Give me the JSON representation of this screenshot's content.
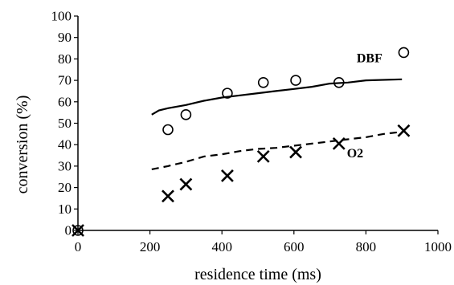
{
  "chart_data": {
    "type": "scatter",
    "xlabel": "residence time (ms)",
    "ylabel": "conversion (%)",
    "xlim": [
      0,
      1000
    ],
    "ylim": [
      0,
      100
    ],
    "xticks": [
      "0",
      "200",
      "400",
      "600",
      "800",
      "1000"
    ],
    "yticks": [
      "0",
      "10",
      "20",
      "30",
      "40",
      "50",
      "60",
      "70",
      "80",
      "90",
      "100"
    ],
    "grid": false,
    "legend": "none",
    "series": [
      {
        "name": "DBF",
        "kind": "points",
        "marker": "circle",
        "points": [
          [
            0,
            0
          ],
          [
            250,
            47
          ],
          [
            300,
            54
          ],
          [
            415,
            64
          ],
          [
            515,
            69
          ],
          [
            605,
            70
          ],
          [
            725,
            69
          ],
          [
            905,
            83
          ]
        ]
      },
      {
        "name": "O2",
        "kind": "points",
        "marker": "x",
        "points": [
          [
            0,
            0
          ],
          [
            250,
            16
          ],
          [
            300,
            21.5
          ],
          [
            415,
            25.5
          ],
          [
            515,
            34.5
          ],
          [
            605,
            36.5
          ],
          [
            725,
            40.5
          ],
          [
            905,
            46.5
          ]
        ]
      },
      {
        "name": "DBF",
        "kind": "line",
        "style": "solid",
        "points": [
          [
            205,
            54
          ],
          [
            225,
            56
          ],
          [
            250,
            57
          ],
          [
            300,
            58.5
          ],
          [
            350,
            60.5
          ],
          [
            400,
            62
          ],
          [
            450,
            63
          ],
          [
            500,
            64
          ],
          [
            550,
            65
          ],
          [
            600,
            66
          ],
          [
            650,
            67
          ],
          [
            700,
            68.5
          ],
          [
            750,
            69
          ],
          [
            800,
            70
          ],
          [
            900,
            70.5
          ]
        ]
      },
      {
        "name": "O2",
        "kind": "line",
        "style": "dashed",
        "points": [
          [
            205,
            28.5
          ],
          [
            250,
            30
          ],
          [
            300,
            32
          ],
          [
            350,
            34.5
          ],
          [
            400,
            35.5
          ],
          [
            450,
            37
          ],
          [
            500,
            38
          ],
          [
            550,
            38.5
          ],
          [
            600,
            39.5
          ],
          [
            650,
            40.5
          ],
          [
            700,
            41.5
          ],
          [
            750,
            42.5
          ],
          [
            800,
            43.5
          ],
          [
            850,
            45
          ],
          [
            900,
            46
          ]
        ]
      }
    ],
    "annotations": [
      {
        "text": "DBF",
        "x": 810,
        "y": 78.5
      },
      {
        "text": "O2",
        "x": 770,
        "y": 34
      }
    ],
    "colors": {
      "ink": "#000000",
      "background": "#ffffff"
    }
  }
}
